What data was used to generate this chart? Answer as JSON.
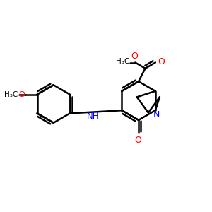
{
  "background_color": "#ffffff",
  "bond_color": "#000000",
  "n_color": "#0000ff",
  "o_color": "#ff0000",
  "line_width": 1.8,
  "figsize": [
    3.0,
    3.0
  ],
  "dpi": 100,
  "xlim": [
    0,
    10
  ],
  "ylim": [
    0,
    10
  ]
}
